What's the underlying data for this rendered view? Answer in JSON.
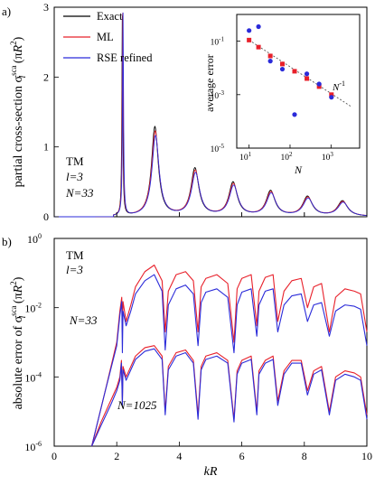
{
  "panel_labels": {
    "a": "a)",
    "b": "b)"
  },
  "legend": [
    {
      "name": "Exact",
      "color": "#000000"
    },
    {
      "name": "ML",
      "color": "#e8202a"
    },
    {
      "name": "RSE refined",
      "color": "#2b2bd9"
    }
  ],
  "colors": {
    "exact": "#000000",
    "ml": "#e8202a",
    "rse": "#2b2bd9",
    "inset_ml": "#e8202a",
    "inset_rse": "#2b2bd9",
    "fit": "#555555"
  },
  "chart_data": [
    {
      "type": "line",
      "xlim": [
        0,
        10
      ],
      "ylim": [
        0,
        3
      ],
      "xticks": [
        0,
        2,
        4,
        6,
        8,
        10
      ],
      "yticks": [
        0,
        1,
        2,
        3
      ],
      "ylabel": "partial cross-section",
      "ylabel_sigma": "σ",
      "ylabel_sub": "l",
      "ylabel_sup": "sca",
      "ylabel_unit_pre": "(π",
      "ylabel_unit_R": "R",
      "ylabel_unit_exp": "2",
      "ylabel_unit_post": ")",
      "annotations": {
        "mode": "TM",
        "l": "l=3",
        "N": "N=33"
      },
      "peaks": [
        {
          "x": 2.18,
          "height": 2.9,
          "width": 0.018
        },
        {
          "x": 3.22,
          "height": 1.28,
          "width": 0.13
        },
        {
          "x": 4.5,
          "height": 0.68,
          "width": 0.15
        },
        {
          "x": 5.72,
          "height": 0.48,
          "width": 0.16
        },
        {
          "x": 6.92,
          "height": 0.36,
          "width": 0.17
        },
        {
          "x": 8.1,
          "height": 0.28,
          "width": 0.18
        },
        {
          "x": 9.22,
          "height": 0.22,
          "width": 0.19
        }
      ],
      "series": [
        {
          "name": "Exact",
          "scale": 1.0
        },
        {
          "name": "ML",
          "scale": 0.95
        },
        {
          "name": "RSE refined",
          "scale": 0.9
        }
      ]
    },
    {
      "type": "scatter",
      "xscale": "log",
      "yscale": "log",
      "xlim": [
        5,
        5000
      ],
      "ylim": [
        1e-05,
        1
      ],
      "xticks": [
        10,
        100,
        1000
      ],
      "xtick_labels": [
        "10",
        "10",
        "10"
      ],
      "xtick_exps": [
        "1",
        "2",
        "3"
      ],
      "yticks": [
        1e-05,
        0.001,
        0.1
      ],
      "ytick_labels": [
        "10",
        "10",
        "10"
      ],
      "ytick_exps": [
        "-5",
        "-3",
        "-1"
      ],
      "xlabel": "N",
      "ylabel": "average error",
      "fit_label": "N",
      "fit_exp": "-1",
      "series": [
        {
          "name": "ML",
          "x": [
            10,
            17,
            33,
            65,
            129,
            257,
            513,
            1025
          ],
          "y": [
            0.11,
            0.06,
            0.028,
            0.014,
            0.0075,
            0.004,
            0.002,
            0.001
          ]
        },
        {
          "name": "RSE refined",
          "x": [
            10,
            17,
            33,
            65,
            129,
            257,
            513,
            1025
          ],
          "y": [
            0.25,
            0.35,
            0.018,
            0.009,
            0.00018,
            0.006,
            0.0025,
            0.0008
          ]
        }
      ],
      "fit": {
        "x": [
          10,
          3000
        ],
        "y": [
          0.11,
          0.00037
        ]
      }
    },
    {
      "type": "line",
      "yscale": "log",
      "xlim": [
        0,
        10
      ],
      "ylim": [
        1e-06,
        1
      ],
      "xticks": [
        0,
        2,
        4,
        6,
        8,
        10
      ],
      "yticks": [
        1e-06,
        0.0001,
        0.01,
        1
      ],
      "ytick_labels": [
        "10",
        "10",
        "10",
        "10"
      ],
      "ytick_exps": [
        "-6",
        "-4",
        "-2",
        "0"
      ],
      "xlabel": "kR",
      "ylabel": "absolute error of",
      "annotations": {
        "mode": "TM",
        "l": "l=3",
        "N33": "N=33",
        "N1025": "N=1025"
      },
      "series": [
        {
          "name": "ML N=33",
          "x": [
            1.2,
            1.6,
            2.0,
            2.1,
            2.16,
            2.18,
            2.2,
            2.3,
            2.45,
            2.6,
            2.9,
            3.2,
            3.45,
            3.55,
            3.65,
            3.9,
            4.2,
            4.45,
            4.6,
            4.7,
            4.85,
            5.2,
            5.55,
            5.75,
            5.85,
            6.0,
            6.3,
            6.48,
            6.55,
            6.75,
            7.0,
            7.15,
            7.35,
            7.6,
            7.9,
            8.1,
            8.3,
            8.55,
            8.8,
            9.0,
            9.3,
            9.6,
            9.8,
            10.0
          ],
          "y": [
            1e-06,
            3e-05,
            0.001,
            0.008,
            0.02,
            0.002,
            0.015,
            0.004,
            0.012,
            0.04,
            0.11,
            0.17,
            0.06,
            0.002,
            0.03,
            0.09,
            0.11,
            0.06,
            0.002,
            0.04,
            0.07,
            0.09,
            0.05,
            0.001,
            0.035,
            0.07,
            0.09,
            0.003,
            0.03,
            0.075,
            0.09,
            0.004,
            0.03,
            0.06,
            0.07,
            0.01,
            0.04,
            0.05,
            0.002,
            0.02,
            0.035,
            0.03,
            0.025,
            0.002
          ]
        },
        {
          "name": "RSE N=33",
          "x": [
            1.2,
            1.6,
            2.0,
            2.1,
            2.16,
            2.18,
            2.2,
            2.3,
            2.45,
            2.6,
            2.9,
            3.2,
            3.45,
            3.55,
            3.65,
            3.9,
            4.2,
            4.45,
            4.6,
            4.7,
            4.85,
            5.2,
            5.55,
            5.75,
            5.85,
            6.0,
            6.3,
            6.48,
            6.55,
            6.75,
            7.0,
            7.15,
            7.35,
            7.6,
            7.9,
            8.1,
            8.3,
            8.55,
            8.8,
            9.0,
            9.3,
            9.6,
            9.8,
            10.0
          ],
          "y": [
            1e-06,
            3e-05,
            0.0008,
            0.006,
            0.015,
            0.0005,
            0.008,
            0.003,
            0.008,
            0.025,
            0.06,
            0.09,
            0.03,
            0.0006,
            0.012,
            0.035,
            0.045,
            0.025,
            0.0008,
            0.014,
            0.028,
            0.035,
            0.02,
            0.0005,
            0.012,
            0.028,
            0.035,
            0.0015,
            0.012,
            0.03,
            0.035,
            0.002,
            0.012,
            0.022,
            0.025,
            0.004,
            0.012,
            0.014,
            0.0015,
            0.008,
            0.012,
            0.011,
            0.009,
            0.0008
          ]
        },
        {
          "name": "ML N=1025",
          "x": [
            1.2,
            1.5,
            1.8,
            2.0,
            2.1,
            2.15,
            2.18,
            2.2,
            2.3,
            2.45,
            2.6,
            2.9,
            3.2,
            3.45,
            3.55,
            3.65,
            3.9,
            4.2,
            4.45,
            4.6,
            4.7,
            4.85,
            5.2,
            5.55,
            5.75,
            5.85,
            6.0,
            6.3,
            6.48,
            6.55,
            6.75,
            7.0,
            7.15,
            7.35,
            7.6,
            7.9,
            8.1,
            8.3,
            8.55,
            8.8,
            9.0,
            9.3,
            9.6,
            9.8,
            10.0
          ],
          "y": [
            1e-06,
            5e-06,
            2e-05,
            5e-05,
            0.0001,
            0.0003,
            2e-05,
            0.0002,
            0.0001,
            0.0002,
            0.0004,
            0.0007,
            0.0008,
            0.0004,
            1e-05,
            0.0002,
            0.0005,
            0.0006,
            0.0003,
            8e-06,
            0.0002,
            0.0004,
            0.0005,
            0.0003,
            6e-06,
            0.00015,
            0.0003,
            0.0004,
            1e-05,
            0.00015,
            0.0003,
            0.0004,
            2e-05,
            0.00015,
            0.0003,
            0.0003,
            4e-05,
            0.00015,
            0.0002,
            1e-05,
            0.0001,
            0.00015,
            0.00013,
            0.0001,
            8e-06
          ]
        },
        {
          "name": "RSE N=1025",
          "x": [
            1.2,
            1.5,
            1.8,
            2.0,
            2.1,
            2.15,
            2.18,
            2.2,
            2.3,
            2.45,
            2.6,
            2.9,
            3.2,
            3.45,
            3.55,
            3.65,
            3.9,
            4.2,
            4.45,
            4.6,
            4.7,
            4.85,
            5.2,
            5.55,
            5.75,
            5.85,
            6.0,
            6.3,
            6.48,
            6.55,
            6.75,
            7.0,
            7.15,
            7.35,
            7.6,
            7.9,
            8.1,
            8.3,
            8.55,
            8.8,
            9.0,
            9.3,
            9.6,
            9.8,
            10.0
          ],
          "y": [
            1e-06,
            4e-06,
            1.5e-05,
            4e-05,
            8e-05,
            0.00025,
            1.5e-05,
            0.00016,
            8e-05,
            0.00016,
            0.00032,
            0.00055,
            0.00065,
            0.00032,
            8e-06,
            0.00016,
            0.0004,
            0.0005,
            0.00025,
            6e-06,
            0.00016,
            0.00032,
            0.0004,
            0.00025,
            5e-06,
            0.00012,
            0.00025,
            0.00032,
            8e-06,
            0.00012,
            0.00025,
            0.00032,
            1.5e-05,
            0.00012,
            0.00025,
            0.00025,
            3e-05,
            0.00012,
            0.00016,
            8e-06,
            8e-05,
            0.00012,
            0.0001,
            8e-05,
            6e-06
          ]
        }
      ]
    }
  ]
}
